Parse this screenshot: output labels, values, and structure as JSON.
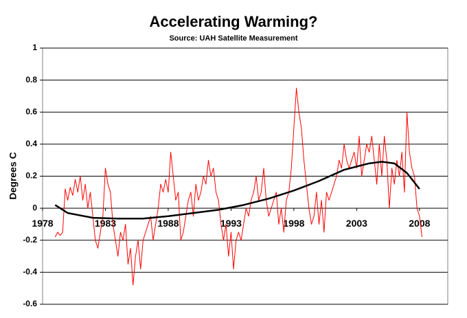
{
  "chart_data": {
    "type": "line",
    "title": "Accelerating Warming?",
    "subtitle": "Source:  UAH Satellite Measurement",
    "y_label": "Degrees C",
    "xlim": [
      1978,
      2010.25
    ],
    "xticks": [
      1978,
      1983,
      1988,
      1993,
      1998,
      2003,
      2008
    ],
    "ylim": [
      -0.6,
      1
    ],
    "yticks": [
      -0.6,
      -0.4,
      -0.2,
      0,
      0.2,
      0.4,
      0.6,
      0.8,
      1
    ],
    "grid": true,
    "series": [
      {
        "color": "#ff0000",
        "x": [
          1979.0,
          1979.2,
          1979.4,
          1979.6,
          1979.8,
          1980.0,
          1980.2,
          1980.4,
          1980.6,
          1980.8,
          1981.0,
          1981.2,
          1981.4,
          1981.6,
          1981.8,
          1982.0,
          1982.2,
          1982.4,
          1982.6,
          1982.8,
          1983.0,
          1983.2,
          1983.4,
          1983.6,
          1983.8,
          1984.0,
          1984.2,
          1984.4,
          1984.6,
          1984.8,
          1985.0,
          1985.2,
          1985.4,
          1985.6,
          1985.8,
          1986.0,
          1986.2,
          1986.4,
          1986.6,
          1986.8,
          1987.0,
          1987.2,
          1987.4,
          1987.6,
          1987.8,
          1988.0,
          1988.2,
          1988.4,
          1988.6,
          1988.8,
          1989.0,
          1989.2,
          1989.4,
          1989.6,
          1989.8,
          1990.0,
          1990.2,
          1990.4,
          1990.6,
          1990.8,
          1991.0,
          1991.2,
          1991.4,
          1991.6,
          1991.8,
          1992.0,
          1992.2,
          1992.4,
          1992.6,
          1992.8,
          1993.0,
          1993.2,
          1993.4,
          1993.6,
          1993.8,
          1994.0,
          1994.2,
          1994.4,
          1994.6,
          1994.8,
          1995.0,
          1995.2,
          1995.4,
          1995.6,
          1995.8,
          1996.0,
          1996.2,
          1996.4,
          1996.6,
          1996.8,
          1997.0,
          1997.2,
          1997.4,
          1997.6,
          1997.8,
          1998.0,
          1998.2,
          1998.4,
          1998.6,
          1998.8,
          1999.0,
          1999.2,
          1999.4,
          1999.6,
          1999.8,
          2000.0,
          2000.2,
          2000.4,
          2000.6,
          2000.8,
          2001.0,
          2001.2,
          2001.4,
          2001.6,
          2001.8,
          2002.0,
          2002.2,
          2002.4,
          2002.6,
          2002.8,
          2003.0,
          2003.2,
          2003.4,
          2003.6,
          2003.8,
          2004.0,
          2004.2,
          2004.4,
          2004.6,
          2004.8,
          2005.0,
          2005.2,
          2005.4,
          2005.6,
          2005.8,
          2006.0,
          2006.2,
          2006.4,
          2006.6,
          2006.8,
          2007.0,
          2007.2,
          2007.4,
          2007.6,
          2007.8,
          2008.0,
          2008.2
        ],
        "values": [
          -0.18,
          -0.15,
          -0.17,
          -0.15,
          0.12,
          0.05,
          0.13,
          0.08,
          0.18,
          0.1,
          0.2,
          0.05,
          0.15,
          0.0,
          0.1,
          -0.05,
          -0.2,
          -0.25,
          -0.15,
          -0.05,
          0.25,
          0.15,
          0.1,
          -0.1,
          -0.2,
          -0.3,
          -0.15,
          -0.2,
          -0.1,
          -0.35,
          -0.25,
          -0.48,
          -0.3,
          -0.2,
          -0.38,
          -0.2,
          -0.15,
          -0.1,
          -0.05,
          -0.2,
          -0.1,
          0.0,
          0.15,
          0.1,
          0.18,
          0.1,
          0.35,
          0.2,
          0.05,
          0.1,
          -0.2,
          -0.15,
          -0.05,
          0.05,
          0.1,
          -0.05,
          0.15,
          0.05,
          0.1,
          0.2,
          0.15,
          0.3,
          0.2,
          0.25,
          0.1,
          0.05,
          -0.1,
          -0.2,
          -0.1,
          -0.3,
          -0.15,
          -0.38,
          -0.2,
          -0.15,
          -0.2,
          -0.1,
          0.0,
          -0.05,
          0.05,
          0.1,
          0.2,
          0.05,
          0.1,
          0.25,
          0.05,
          -0.05,
          0.0,
          0.05,
          0.1,
          -0.1,
          0.0,
          -0.15,
          0.05,
          0.1,
          0.25,
          0.5,
          0.75,
          0.6,
          0.5,
          0.3,
          0.15,
          0.0,
          -0.1,
          -0.05,
          0.1,
          -0.1,
          0.05,
          -0.15,
          0.1,
          0.05,
          0.1,
          0.15,
          0.2,
          0.3,
          0.25,
          0.4,
          0.3,
          0.25,
          0.3,
          0.35,
          0.25,
          0.45,
          0.2,
          0.3,
          0.4,
          0.35,
          0.45,
          0.3,
          0.15,
          0.4,
          0.2,
          0.45,
          0.3,
          0.0,
          0.25,
          0.15,
          0.3,
          0.2,
          0.35,
          0.1,
          0.6,
          0.35,
          0.25,
          0.2,
          0.0,
          -0.05,
          -0.18
        ]
      },
      {
        "color": "#000000",
        "x": [
          1979,
          1980,
          1982,
          1984,
          1986,
          1988,
          1990,
          1992,
          1994,
          1996,
          1998,
          2000,
          2002,
          2004,
          2005,
          2006,
          2007,
          2008
        ],
        "values": [
          0.02,
          -0.03,
          -0.06,
          -0.065,
          -0.065,
          -0.05,
          -0.03,
          -0.01,
          0.02,
          0.06,
          0.11,
          0.17,
          0.24,
          0.28,
          0.29,
          0.28,
          0.22,
          0.12
        ]
      }
    ]
  }
}
